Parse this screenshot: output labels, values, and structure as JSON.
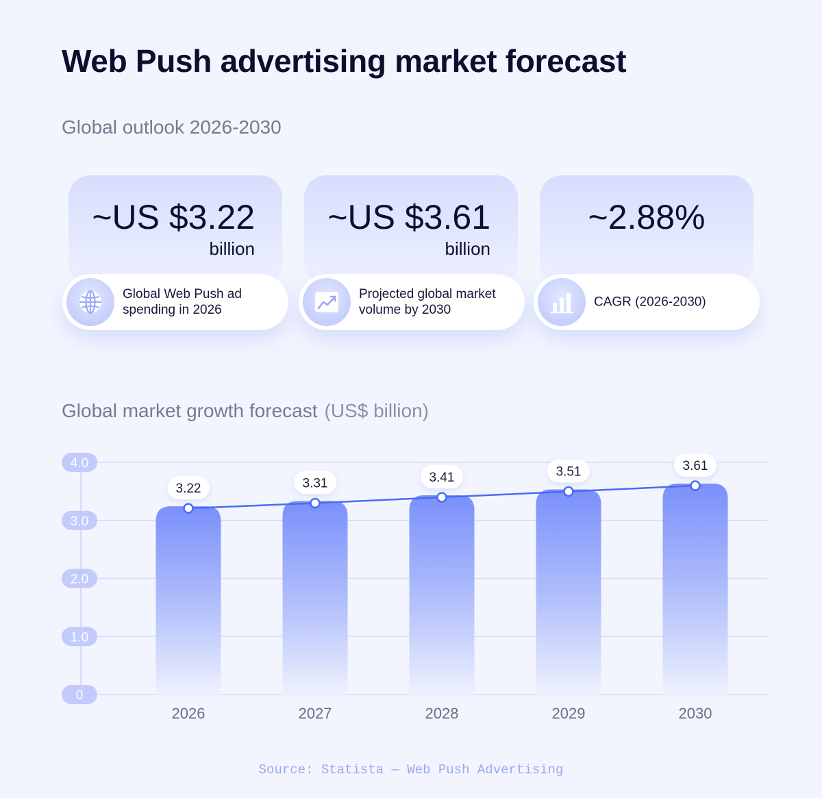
{
  "title": "Web Push advertising market forecast",
  "outlook": {
    "title": "Global outlook 2026-2030",
    "cards": [
      {
        "value": "~US $3.22",
        "unit": "billion",
        "label": "Global Web Push ad spending in 2026",
        "icon": "globe-icon"
      },
      {
        "value": "~US $3.61",
        "unit": "billion",
        "label": "Projected global market volume by 2030",
        "icon": "line-chart-icon"
      },
      {
        "value": "~2.88%",
        "unit": "",
        "label": "CAGR (2026-2030)",
        "icon": "bar-chart-icon"
      }
    ]
  },
  "chart_section": {
    "title": "Global market growth forecast",
    "unit": "(US$ billion)"
  },
  "chart_data": {
    "type": "bar",
    "title": "Global market growth forecast",
    "ylabel": "US$ billion",
    "categories": [
      "2026",
      "2027",
      "2028",
      "2029",
      "2030"
    ],
    "values": [
      3.22,
      3.31,
      3.41,
      3.51,
      3.61
    ],
    "data_labels": [
      "3.22",
      "3.31",
      "3.41",
      "3.51",
      "3.61"
    ],
    "y_ticks": [
      "0",
      "1.0",
      "2.0",
      "3.0",
      "4.0"
    ],
    "ylim": [
      0,
      4
    ],
    "grid": true,
    "overlay_line": true,
    "colors": {
      "bar_top": "#7a90fb",
      "bar_bottom": "#eef1fe",
      "line": "#4a6cf0",
      "grid": "#d5dcfb"
    }
  },
  "source": "Source: Statista — Web Push Advertising"
}
